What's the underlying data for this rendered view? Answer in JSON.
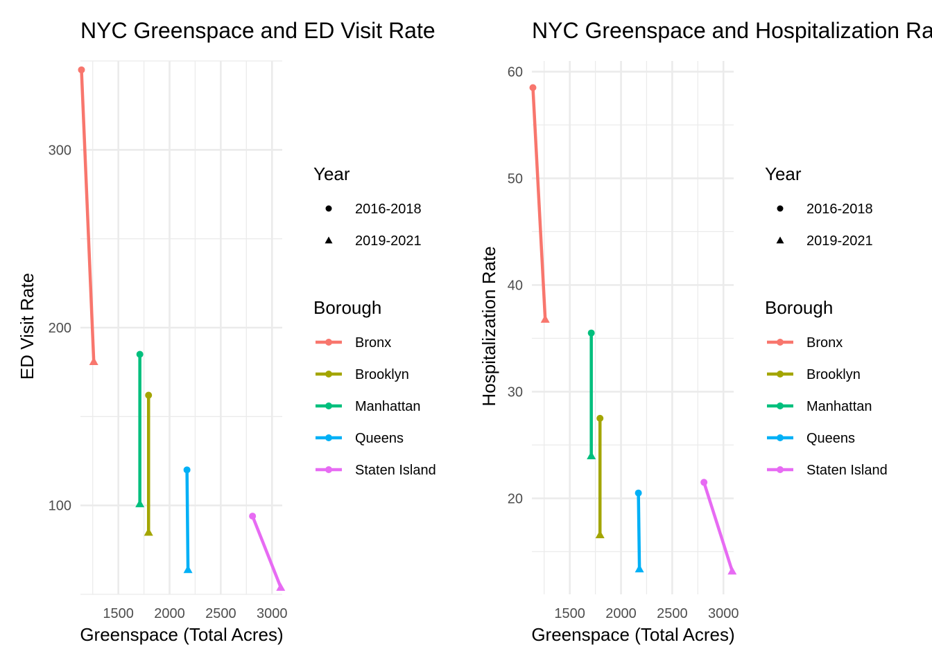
{
  "chart_data": [
    {
      "type": "line",
      "title": "NYC Greenspace and ED Visit Rate",
      "xlabel": "Greenspace (Total Acres)",
      "ylabel": "ED Visit Rate",
      "xlim": [
        1130,
        3100
      ],
      "ylim": [
        50,
        350
      ],
      "xticks": [
        1500,
        2000,
        2500,
        3000
      ],
      "yticks": [
        100,
        200,
        300
      ],
      "grid": true,
      "series": [
        {
          "name": "Bronx",
          "color": "#F8766D",
          "points": [
            {
              "x": 1140,
              "y": 345,
              "year": "2016-2018"
            },
            {
              "x": 1260,
              "y": 181,
              "year": "2019-2021"
            }
          ]
        },
        {
          "name": "Brooklyn",
          "color": "#A3A500",
          "points": [
            {
              "x": 1795,
              "y": 162,
              "year": "2016-2018"
            },
            {
              "x": 1795,
              "y": 85,
              "year": "2019-2021"
            }
          ]
        },
        {
          "name": "Manhattan",
          "color": "#00BF7D",
          "points": [
            {
              "x": 1710,
              "y": 185,
              "year": "2016-2018"
            },
            {
              "x": 1710,
              "y": 101,
              "year": "2019-2021"
            }
          ]
        },
        {
          "name": "Queens",
          "color": "#00B0F6",
          "points": [
            {
              "x": 2170,
              "y": 120,
              "year": "2016-2018"
            },
            {
              "x": 2180,
              "y": 64,
              "year": "2019-2021"
            }
          ]
        },
        {
          "name": "Staten Island",
          "color": "#E76BF3",
          "points": [
            {
              "x": 2810,
              "y": 94,
              "year": "2016-2018"
            },
            {
              "x": 3085,
              "y": 54,
              "year": "2019-2021"
            }
          ]
        }
      ]
    },
    {
      "type": "line",
      "title": "NYC Greenspace and Hospitalization Rate",
      "xlabel": "Greenspace (Total Acres)",
      "ylabel": "Hospitalization Rate",
      "xlim": [
        1130,
        3100
      ],
      "ylim": [
        11,
        61
      ],
      "xticks": [
        1500,
        2000,
        2500,
        3000
      ],
      "yticks": [
        20,
        30,
        40,
        50,
        60
      ],
      "grid": true,
      "series": [
        {
          "name": "Bronx",
          "color": "#F8766D",
          "points": [
            {
              "x": 1140,
              "y": 58.5,
              "year": "2016-2018"
            },
            {
              "x": 1260,
              "y": 36.8,
              "year": "2019-2021"
            }
          ]
        },
        {
          "name": "Brooklyn",
          "color": "#A3A500",
          "points": [
            {
              "x": 1795,
              "y": 27.5,
              "year": "2016-2018"
            },
            {
              "x": 1795,
              "y": 16.6,
              "year": "2019-2021"
            }
          ]
        },
        {
          "name": "Manhattan",
          "color": "#00BF7D",
          "points": [
            {
              "x": 1710,
              "y": 35.5,
              "year": "2016-2018"
            },
            {
              "x": 1710,
              "y": 24.0,
              "year": "2019-2021"
            }
          ]
        },
        {
          "name": "Queens",
          "color": "#00B0F6",
          "points": [
            {
              "x": 2170,
              "y": 20.5,
              "year": "2016-2018"
            },
            {
              "x": 2180,
              "y": 13.4,
              "year": "2019-2021"
            }
          ]
        },
        {
          "name": "Staten Island",
          "color": "#E76BF3",
          "points": [
            {
              "x": 2810,
              "y": 21.5,
              "year": "2016-2018"
            },
            {
              "x": 3085,
              "y": 13.2,
              "year": "2019-2021"
            }
          ]
        }
      ]
    }
  ],
  "legend": {
    "year_title": "Year",
    "years": [
      "2016-2018",
      "2019-2021"
    ],
    "borough_title": "Borough",
    "boroughs": [
      {
        "name": "Bronx",
        "color": "#F8766D"
      },
      {
        "name": "Brooklyn",
        "color": "#A3A500"
      },
      {
        "name": "Manhattan",
        "color": "#00BF7D"
      },
      {
        "name": "Queens",
        "color": "#00B0F6"
      },
      {
        "name": "Staten Island",
        "color": "#E76BF3"
      }
    ]
  }
}
